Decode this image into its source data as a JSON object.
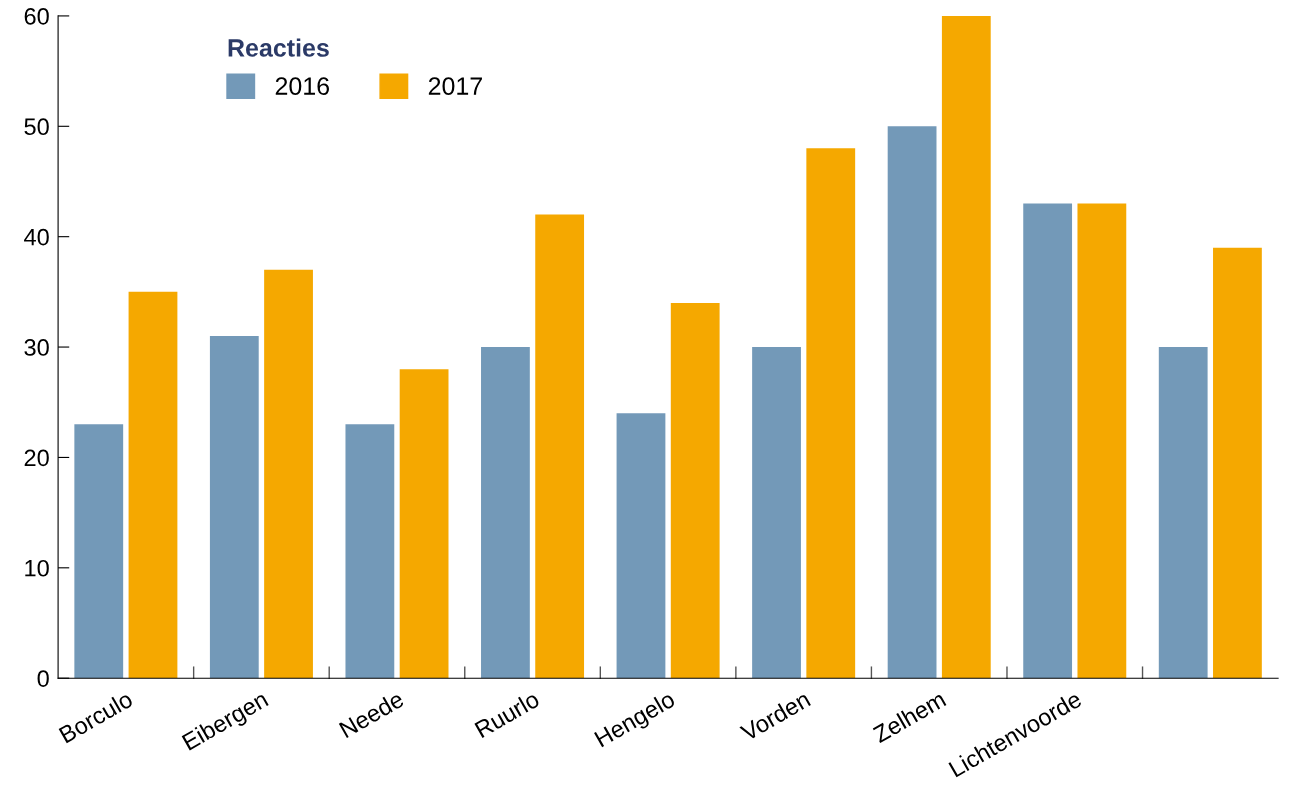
{
  "chart_data": {
    "type": "bar",
    "categories": [
      "Borculo",
      "Eibergen",
      "Neede",
      "Ruurlo",
      "Hengelo",
      "Vorden",
      "Zelhem",
      "Lichtenvoorde",
      null
    ],
    "series": [
      {
        "name": "2016",
        "color": "#7399b8",
        "values": [
          23,
          31,
          23,
          30,
          24,
          30,
          50,
          43,
          30
        ]
      },
      {
        "name": "2017",
        "color": "#f5a800",
        "values": [
          35,
          37,
          28,
          42,
          34,
          48,
          60,
          43,
          39
        ]
      }
    ],
    "legend_title": "Reacties",
    "legend": "top left",
    "ylim": [
      0,
      60
    ],
    "yticks": [
      0,
      10,
      20,
      30,
      40,
      50,
      60
    ],
    "grid": false
  }
}
